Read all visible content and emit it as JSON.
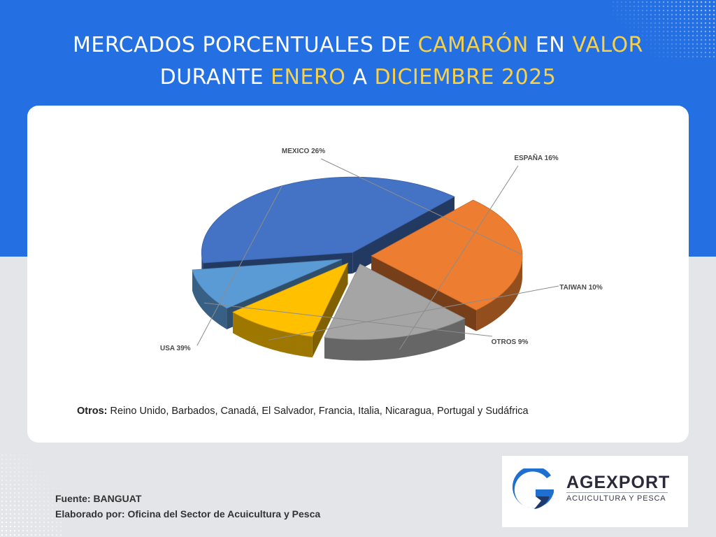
{
  "title": {
    "line1": [
      {
        "text": "MERCADOS PORCENTUALES DE ",
        "hl": false
      },
      {
        "text": "CAMARÓN",
        "hl": true
      },
      {
        "text": " EN ",
        "hl": false
      },
      {
        "text": "VALOR",
        "hl": true
      }
    ],
    "line2": [
      {
        "text": "DURANTE ",
        "hl": false
      },
      {
        "text": "ENERO",
        "hl": true
      },
      {
        "text": " A ",
        "hl": false
      },
      {
        "text": "DICIEMBRE 2025",
        "hl": true
      }
    ]
  },
  "chart_data": {
    "type": "pie",
    "style": "3d-exploded",
    "slices": [
      {
        "name": "USA",
        "value": 39,
        "label": "USA 39%",
        "color": "#4472c4"
      },
      {
        "name": "MEXICO",
        "value": 26,
        "label": "MEXICO 26%",
        "color": "#ed7d31"
      },
      {
        "name": "ESPAÑA",
        "value": 16,
        "label": "ESPAÑA 16%",
        "color": "#a5a5a5"
      },
      {
        "name": "TAIWAN",
        "value": 10,
        "label": "TAIWAN 10%",
        "color": "#ffc000"
      },
      {
        "name": "OTROS",
        "value": 9,
        "label": "OTROS 9%",
        "color": "#5b9bd5"
      }
    ]
  },
  "note": {
    "label": "Otros:",
    "text": " Reino Unido, Barbados, Canadá, El Salvador, Francia, Italia, Nicaragua, Portugal y Sudáfrica"
  },
  "footer": {
    "source": "Fuente: BANGUAT",
    "author": "Elaborado por: Oficina del Sector de Acuicultura y Pesca"
  },
  "logo": {
    "name": "AGEXPORT",
    "sub": "ACUICULTURA Y PESCA",
    "colors": {
      "blue": "#1f6fd1",
      "navy": "#1d3a6e"
    }
  },
  "colors": {
    "band": "#2470e3",
    "highlight": "#f7d14a",
    "background": "#e4e5e9"
  }
}
